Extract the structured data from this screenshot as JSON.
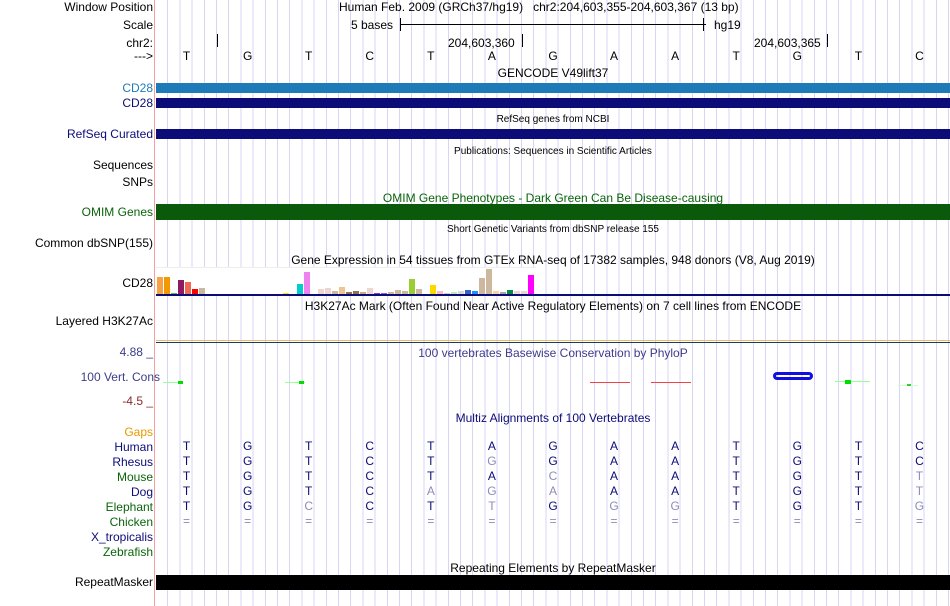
{
  "header": {
    "window_position_label": "Window Position",
    "window_position": "Human Feb. 2009 (GRCh37/hg19)   chr2:204,603,355-204,603,367 (13 bp)",
    "scale_label": "Scale",
    "scale_text": "5 bases",
    "scale_assembly": "hg19",
    "chrom_label": "chr2:",
    "pos1": "204,603,360",
    "pos2": "204,603,365",
    "strand_label": "--->"
  },
  "sequence": [
    "T",
    "G",
    "T",
    "C",
    "T",
    "A",
    "G",
    "A",
    "A",
    "T",
    "G",
    "T",
    "C"
  ],
  "tracks": {
    "gencode": {
      "title": "GENCODE V49lift37",
      "items": [
        "CD28",
        "CD28"
      ]
    },
    "refseq": {
      "title": "RefSeq genes from NCBI",
      "label": "RefSeq Curated"
    },
    "pubs": {
      "title": "Publications: Sequences in Scientific Articles",
      "label": "Sequences"
    },
    "snps": {
      "label": "SNPs"
    },
    "omim": {
      "title": "OMIM Gene Phenotypes - Dark Green Can Be Disease-causing",
      "label": "OMIM Genes"
    },
    "dbsnp": {
      "title": "Short Genetic Variants from dbSNP release 155",
      "label": "Common dbSNP(155)"
    },
    "gtex": {
      "title": "Gene Expression in 54 tissues from GTEx RNA-seq of 17382 samples, 948 donors (V8, Aug 2019)",
      "label": "CD28"
    },
    "h3k27ac": {
      "title": "H3K27Ac Mark (Often Found Near Active Regulatory Elements) on 7 cell lines from ENCODE",
      "label": "Layered H3K27Ac"
    },
    "phylop": {
      "title": "100 vertebrates Basewise Conservation by PhyloP",
      "label": "100 Vert. Cons",
      "max": "4.88 _",
      "min": "-4.5 _"
    },
    "multiz": {
      "title": "Multiz Alignments of 100 Vertebrates",
      "gaps_label": "Gaps"
    },
    "rmsk": {
      "title": "Repeating Elements by RepeatMasker",
      "label": "RepeatMasker"
    }
  },
  "alignment": [
    {
      "species": "Human",
      "seq": "TGTCTAGAATGTC",
      "dim": "0000000000000",
      "color": "#0c0c78"
    },
    {
      "species": "Rhesus",
      "seq": "TGTCTGGAATGTC",
      "dim": "0000010000000",
      "color": "#0c0c78"
    },
    {
      "species": "Mouse",
      "seq": "TGTCTACAATGTT",
      "dim": "0000001000001",
      "color": "#0a640a"
    },
    {
      "species": "Dog",
      "seq": "TGTCAGAAATGTT",
      "dim": "0000111000001",
      "color": "#0c0c78"
    },
    {
      "species": "Elephant",
      "seq": "TGCCTTGGGTGTG",
      "dim": "0010010110001",
      "color": "#0a640a"
    },
    {
      "species": "Chicken",
      "seq": "=============",
      "dim": "1111111111111",
      "color": "#0a640a"
    },
    {
      "species": "X_tropicalis",
      "seq": "",
      "dim": "",
      "color": "#0c0c78"
    },
    {
      "species": "Zebrafish",
      "seq": "",
      "dim": "",
      "color": "#0a640a"
    }
  ],
  "chart_data": {
    "type": "bar",
    "title": "Gene Expression in 54 tissues from GTEx RNA-seq of 17382 samples, 948 donors (V8, Aug 2019)",
    "note": "relative heights, max = 1",
    "values": [
      0.68,
      0.68,
      0.04,
      0.56,
      0.48,
      0.2,
      0.24,
      0,
      0,
      0,
      0,
      0,
      0,
      0,
      0,
      0,
      0,
      0,
      0.04,
      0,
      0.4,
      0.88,
      0,
      0.2,
      0.24,
      0.12,
      0.28,
      0.08,
      0.12,
      0.08,
      0.24,
      0.06,
      0.04,
      0.08,
      0.16,
      0.12,
      0.6,
      0.2,
      0,
      0.36,
      0.12,
      0.02,
      0.08,
      0.12,
      0.16,
      0.12,
      0.64,
      1.0,
      0.12,
      0.08,
      0.16,
      0.12,
      0.12,
      0.76
    ],
    "colors": [
      "#f7a144",
      "#f29900",
      "#5fb46f",
      "#8b1c62",
      "#ee6a50",
      "#ff0000",
      "#cdb79e",
      "#ccc",
      "#ccc",
      "#ccc",
      "#ccc",
      "#ccc",
      "#ccc",
      "#ccc",
      "#ccc",
      "#ccc",
      "#ccc",
      "#ccc",
      "#eeee00",
      "#ccc",
      "#00cdcd",
      "#ee82ee",
      "#ccc",
      "#eed5d2",
      "#eed5d2",
      "#cdb79e",
      "#eec591",
      "#8b7355",
      "#8b7355",
      "#cdaa7d",
      "#eed5d2",
      "#9a32cd",
      "#7a67ee",
      "#cdb79e",
      "#cdb79e",
      "#cdb79e",
      "#9acd32",
      "#cdb79e",
      "#ccc",
      "#ffd700",
      "#ffb6c1",
      "#ccc",
      "#b4eeb4",
      "#d9d9d9",
      "#3a5fcd",
      "#1e90ff",
      "#cdb79e",
      "#cdb79e",
      "#ffd39b",
      "#a6a6a6",
      "#008b45",
      "#eed5d2",
      "#eed5d2",
      "#ff00ff"
    ]
  },
  "colors": {
    "gencode_light": "#1f7ab8",
    "navy": "#0c0c78",
    "omim": "#0b5a0b",
    "rmsk": "#000000"
  }
}
